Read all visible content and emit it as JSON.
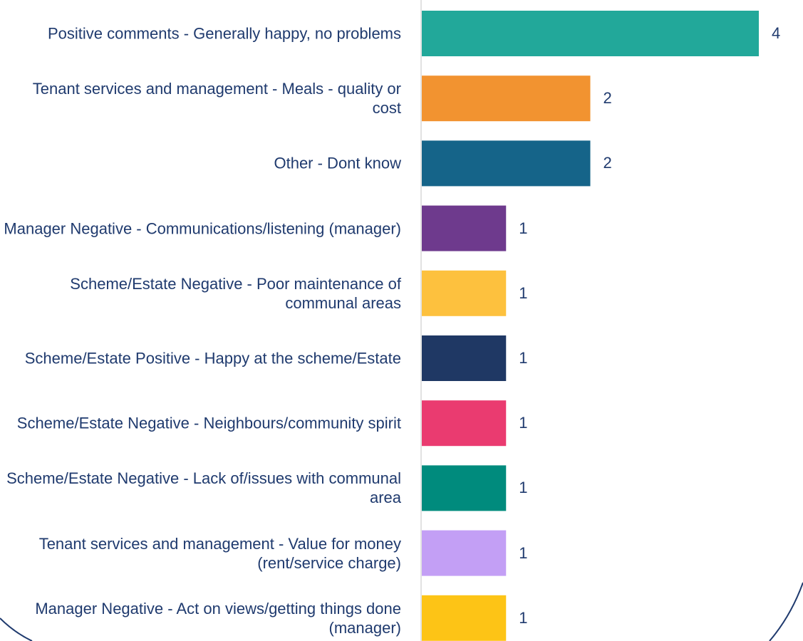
{
  "chart_data": {
    "type": "bar",
    "orientation": "horizontal",
    "categories": [
      "Positive comments - Generally happy, no problems",
      "Tenant services and management - Meals - quality or cost",
      "Other - Dont know",
      "Manager Negative - Communications/listening (manager)",
      "Scheme/Estate Negative - Poor maintenance of communal areas",
      "Scheme/Estate Positive - Happy at the scheme/Estate",
      "Scheme/Estate Negative - Neighbours/community spirit",
      "Scheme/Estate Negative - Lack of/issues with communal area",
      "Tenant services and management - Value for money (rent/service charge)",
      "Manager Negative - Act on views/getting things done (manager)"
    ],
    "values": [
      4,
      2,
      2,
      1,
      1,
      1,
      1,
      1,
      1,
      1
    ],
    "colors": [
      "#22a89a",
      "#f29330",
      "#156489",
      "#6e3a8d",
      "#fdc13e",
      "#1f3864",
      "#ea3b70",
      "#008b7d",
      "#c39ff5",
      "#fdc416"
    ]
  }
}
